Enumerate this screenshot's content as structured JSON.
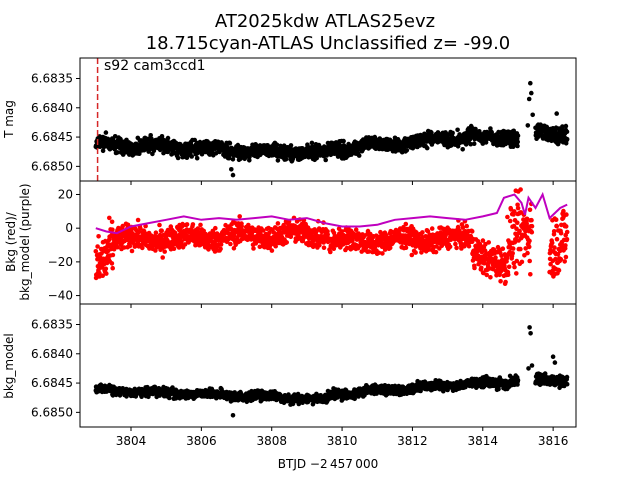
{
  "chart_data": {
    "type": "scatter",
    "title_line1": "AT2025kdw  ATLAS25evz",
    "title_line2": "18.715cyan-ATLAS Unclassified z= -99.0",
    "xlabel": "BTJD −2 457 000",
    "xlim": [
      3802.55,
      3816.65
    ],
    "xticks": [
      3804,
      3806,
      3808,
      3810,
      3812,
      3814,
      3816
    ],
    "xtick_labels": [
      "3804",
      "3806",
      "3808",
      "3810",
      "3812",
      "3814",
      "3816"
    ],
    "vline_x": 3803.05,
    "colors": {
      "flux": "#000000",
      "bkg": "#ff0000",
      "bkg_model": "#bf00bf",
      "vline": "#d62728"
    },
    "panels": [
      {
        "id": "tmag",
        "ylabel": "T mag",
        "annotation": "s92 cam3ccd1",
        "ylim": [
          6.68525,
          6.68315
        ],
        "yticks": [
          6.6835,
          6.684,
          6.6845,
          6.685
        ],
        "ytick_labels": [
          "6.6835",
          "6.6840",
          "6.6845",
          "6.6850"
        ],
        "series": [
          {
            "name": "T mag",
            "segments": [
              {
                "x": [
                  3803.0,
                  3809.6
                ],
                "level": [
                  6.68462,
                  6.68478
                ],
                "noise": 9e-05
              },
              {
                "x": [
                  3809.6,
                  3813.8
                ],
                "level": [
                  6.68472,
                  6.68448
                ],
                "noise": 9e-05
              },
              {
                "x": [
                  3813.8,
                  3815.0
                ],
                "level": [
                  6.68452,
                  6.6845
                ],
                "noise": 9e-05
              },
              {
                "x": [
                  3815.5,
                  3816.4
                ],
                "level": [
                  6.68445,
                  6.68445
                ],
                "noise": 0.0001
              }
            ],
            "outliers": [
              [
                3815.35,
                6.68358
              ],
              [
                3815.38,
                6.68375
              ],
              [
                3815.32,
                6.68385
              ],
              [
                3815.42,
                6.68412
              ],
              [
                3815.28,
                6.6843
              ],
              [
                3816.1,
                6.6841
              ],
              [
                3806.9,
                6.68515
              ],
              [
                3806.85,
                6.68505
              ]
            ]
          }
        ]
      },
      {
        "id": "bkg",
        "ylabel": "Bkg (red)/\nbkg_model (purple)",
        "ylim": [
          -45,
          28
        ],
        "yticks": [
          20,
          0,
          -20,
          -40
        ],
        "ytick_labels": [
          "20",
          "0",
          "−20",
          "−40"
        ],
        "series": [
          {
            "name": "Bkg",
            "segments": [
              {
                "x": [
                  3803.0,
                  3803.5
                ],
                "level": [
                  -20,
                  -8
                ],
                "noise": 12
              },
              {
                "x": [
                  3803.5,
                  3809.6
                ],
                "level": [
                  -7,
                  -3
                ],
                "noise": 5
              },
              {
                "x": [
                  3809.6,
                  3813.7
                ],
                "level": [
                  -8,
                  -6
                ],
                "noise": 4.5
              },
              {
                "x": [
                  3813.7,
                  3814.7
                ],
                "level": [
                  -10,
                  -25
                ],
                "noise": 7
              },
              {
                "x": [
                  3814.7,
                  3815.4
                ],
                "level": [
                  -15,
                  5
                ],
                "noise": 14
              },
              {
                "x": [
                  3815.9,
                  3816.4
                ],
                "level": [
                  -15,
                  -10
                ],
                "noise": 14
              }
            ]
          },
          {
            "name": "bkg_model",
            "line": [
              [
                3803.0,
                0
              ],
              [
                3803.3,
                -2
              ],
              [
                3803.6,
                -3
              ],
              [
                3804.0,
                1
              ],
              [
                3804.5,
                3
              ],
              [
                3805.0,
                5
              ],
              [
                3805.5,
                7
              ],
              [
                3806.0,
                5
              ],
              [
                3806.5,
                6
              ],
              [
                3807.0,
                5
              ],
              [
                3807.5,
                6
              ],
              [
                3808.0,
                7
              ],
              [
                3808.5,
                5
              ],
              [
                3809.0,
                6
              ],
              [
                3809.5,
                3
              ],
              [
                3810.0,
                1
              ],
              [
                3810.5,
                1
              ],
              [
                3811.0,
                2
              ],
              [
                3811.5,
                5
              ],
              [
                3812.0,
                6
              ],
              [
                3812.5,
                7
              ],
              [
                3813.0,
                6
              ],
              [
                3813.5,
                5
              ],
              [
                3814.0,
                7
              ],
              [
                3814.4,
                9
              ],
              [
                3814.6,
                18
              ],
              [
                3814.9,
                20
              ],
              [
                3815.1,
                15
              ],
              [
                3815.2,
                8
              ],
              [
                3815.3,
                18
              ],
              [
                3815.5,
                12
              ],
              [
                3815.7,
                20
              ],
              [
                3815.9,
                6
              ],
              [
                3816.2,
                12
              ],
              [
                3816.4,
                14
              ]
            ]
          }
        ]
      },
      {
        "id": "model",
        "ylabel": "bkg_model",
        "ylim": [
          6.68525,
          6.68315
        ],
        "yticks": [
          6.6835,
          6.684,
          6.6845,
          6.685
        ],
        "ytick_labels": [
          "6.6835",
          "6.6840",
          "6.6845",
          "6.6850"
        ],
        "series": [
          {
            "name": "bkg_model mag",
            "segments": [
              {
                "x": [
                  3803.0,
                  3809.6
                ],
                "level": [
                  6.68462,
                  6.68478
                ],
                "noise": 5.5e-05
              },
              {
                "x": [
                  3809.6,
                  3813.8
                ],
                "level": [
                  6.6847,
                  6.6845
                ],
                "noise": 5.5e-05
              },
              {
                "x": [
                  3813.8,
                  3815.0
                ],
                "level": [
                  6.68454,
                  6.68445
                ],
                "noise": 6e-05
              },
              {
                "x": [
                  3815.5,
                  3816.4
                ],
                "level": [
                  6.68445,
                  6.68445
                ],
                "noise": 7e-05
              }
            ],
            "outliers": [
              [
                3815.33,
                6.68355
              ],
              [
                3815.36,
                6.68365
              ],
              [
                3815.4,
                6.6842
              ],
              [
                3815.3,
                6.68425
              ],
              [
                3816.0,
                6.68405
              ],
              [
                3816.05,
                6.68415
              ],
              [
                3806.9,
                6.68505
              ]
            ]
          }
        ]
      }
    ]
  }
}
